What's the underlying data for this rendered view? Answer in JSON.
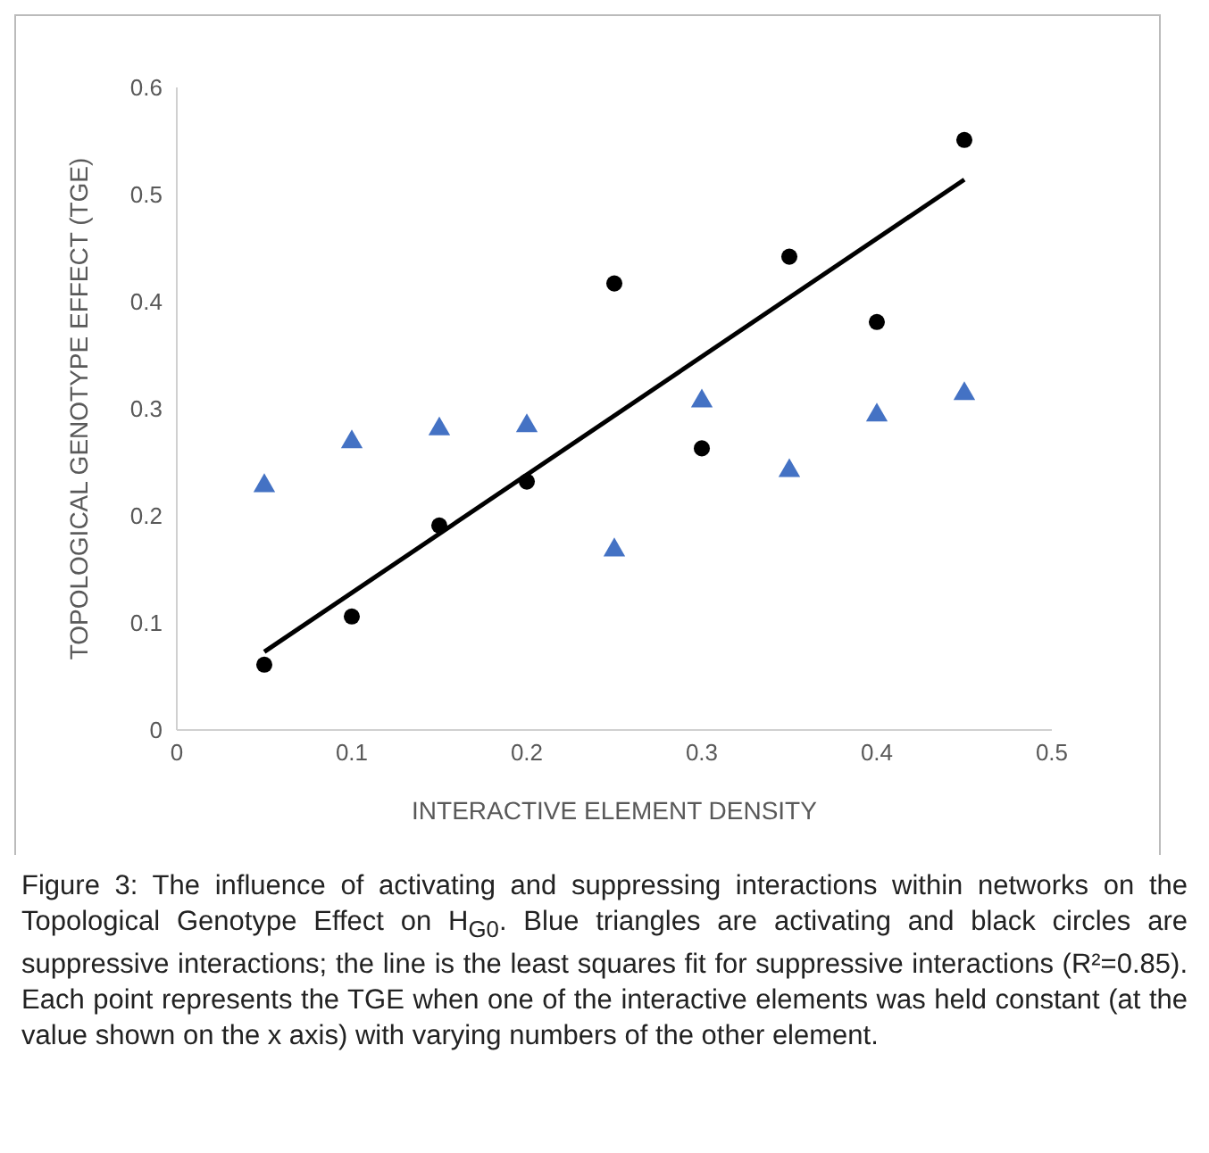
{
  "chart_data": {
    "type": "scatter",
    "xlabel": "INTERACTIVE ELEMENT DENSITY",
    "ylabel": "TOPOLOGICAL GENOTYPE EFFECT (TGE)",
    "x": [
      0.05,
      0.1,
      0.15,
      0.2,
      0.25,
      0.3,
      0.35,
      0.4,
      0.45
    ],
    "xlim": [
      0,
      0.5
    ],
    "xticks": [
      0,
      0.1,
      0.2,
      0.3,
      0.4,
      0.5
    ],
    "ylim": [
      0,
      0.6
    ],
    "yticks": [
      0,
      0.1,
      0.2,
      0.3,
      0.4,
      0.5,
      0.6
    ],
    "series": [
      {
        "color": "#4472c4",
        "marker": "triangle",
        "values": [
          0.228,
          0.269,
          0.281,
          0.284,
          0.168,
          0.307,
          0.242,
          0.294,
          0.314
        ]
      },
      {
        "color": "#000000",
        "marker": "circle",
        "values": [
          0.061,
          0.106,
          0.191,
          0.232,
          0.417,
          0.263,
          0.442,
          0.381,
          0.551
        ]
      },
      {
        "type": "line",
        "color": "#000000",
        "marker": "none",
        "x": [
          0.05,
          0.45
        ],
        "values": [
          0.073,
          0.514
        ]
      }
    ],
    "annotations": [
      "Figure 3: The influence of activating and suppressing interactions within networks on the Topological Genotype Effect on H$_{G0}$. Blue triangles are activating and black circles are suppressive interactions; the line is the least squares fit for suppressive interactions (R²=0.85). Each point represents the TGE when one of the interactive elements was held constant (at the value shown on the x axis) with varying numbers of the other element."
    ]
  }
}
